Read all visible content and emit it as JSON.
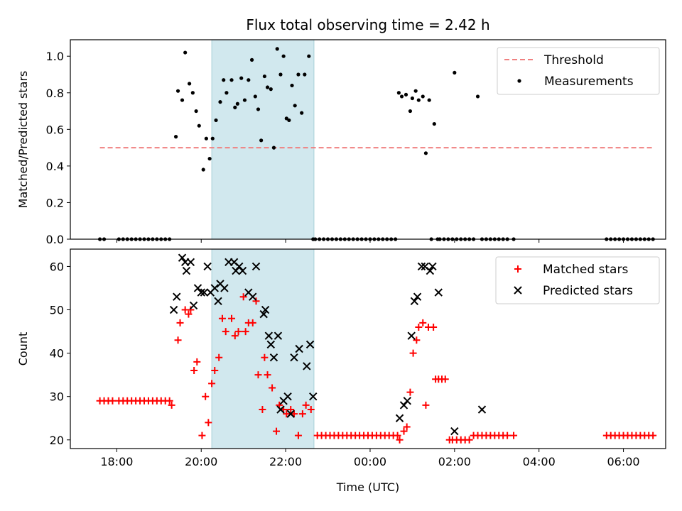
{
  "figure": {
    "title": "Flux total observing time = 2.42 h"
  },
  "chart_data": [
    {
      "type": "scatter",
      "ylabel": "Matched/Predicted stars",
      "xlabel": "",
      "x_unit": "hours UTC (values above 24 are after midnight)",
      "xlim": [
        16.9,
        31.0
      ],
      "ylim": [
        0,
        1.09
      ],
      "yticks": [
        0.0,
        0.2,
        0.4,
        0.6,
        0.8,
        1.0
      ],
      "ytick_labels": [
        "0.0",
        "0.2",
        "0.4",
        "0.6",
        "0.8",
        "1.0"
      ],
      "highlight_span": [
        20.25,
        22.67
      ],
      "highlight_color": "#d1e8ee",
      "legend": {
        "position": "upper right",
        "entries": [
          "Threshold",
          "Measurements"
        ]
      },
      "threshold": {
        "name": "Threshold",
        "y": 0.5,
        "x_range": [
          17.6,
          30.7
        ],
        "color": "#f08080"
      },
      "series": [
        {
          "name": "Measurements",
          "marker": "dot",
          "color": "#000000",
          "x": [
            17.6,
            17.7,
            18.05,
            18.15,
            18.25,
            18.35,
            18.45,
            18.55,
            18.65,
            18.75,
            18.85,
            18.95,
            19.05,
            19.15,
            19.25,
            19.4,
            19.45,
            19.55,
            19.62,
            19.72,
            19.8,
            19.88,
            19.95,
            20.05,
            20.12,
            20.2,
            20.27,
            20.35,
            20.45,
            20.53,
            20.6,
            20.72,
            20.8,
            20.86,
            20.95,
            21.03,
            21.12,
            21.2,
            21.28,
            21.35,
            21.42,
            21.5,
            21.57,
            21.65,
            21.72,
            21.8,
            21.88,
            21.95,
            22.02,
            22.08,
            22.15,
            22.22,
            22.3,
            22.38,
            22.45,
            22.55,
            22.65,
            22.7,
            22.8,
            22.9,
            23.0,
            23.1,
            23.2,
            23.3,
            23.4,
            23.5,
            23.6,
            23.7,
            23.8,
            23.9,
            24.0,
            24.1,
            24.2,
            24.3,
            24.4,
            24.5,
            24.6,
            24.68,
            24.75,
            24.85,
            24.95,
            25.0,
            25.08,
            25.15,
            25.25,
            25.32,
            25.4,
            25.45,
            25.52,
            25.6,
            25.65,
            25.75,
            25.85,
            25.95,
            26.0,
            26.05,
            26.15,
            26.25,
            26.35,
            26.45,
            26.55,
            26.65,
            26.75,
            26.85,
            26.95,
            27.05,
            27.15,
            27.25,
            27.4,
            29.6,
            29.7,
            29.8,
            29.9,
            30.0,
            30.1,
            30.2,
            30.3,
            30.4,
            30.5,
            30.6,
            30.7
          ],
          "y": [
            0,
            0,
            0,
            0,
            0,
            0,
            0,
            0,
            0,
            0,
            0,
            0,
            0,
            0,
            0,
            0.56,
            0.81,
            0.76,
            1.02,
            0.85,
            0.8,
            0.7,
            0.62,
            0.38,
            0.55,
            0.44,
            0.55,
            0.65,
            0.75,
            0.87,
            0.8,
            0.87,
            0.72,
            0.74,
            0.88,
            0.76,
            0.87,
            0.98,
            0.78,
            0.71,
            0.54,
            0.89,
            0.83,
            0.82,
            0.5,
            1.04,
            0.9,
            1.0,
            0.66,
            0.65,
            0.84,
            0.73,
            0.9,
            0.69,
            0.9,
            1.0,
            0,
            0,
            0,
            0,
            0,
            0,
            0,
            0,
            0,
            0,
            0,
            0,
            0,
            0,
            0,
            0,
            0,
            0,
            0,
            0,
            0,
            0.8,
            0.78,
            0.79,
            0.7,
            0.77,
            0.81,
            0.76,
            0.78,
            0.47,
            0.76,
            0,
            0.63,
            0,
            0,
            0,
            0,
            0,
            0.91,
            0,
            0,
            0,
            0,
            0,
            0.78,
            0,
            0,
            0,
            0,
            0,
            0,
            0,
            0,
            0,
            0,
            0,
            0,
            0,
            0,
            0,
            0,
            0,
            0,
            0,
            0
          ]
        }
      ]
    },
    {
      "type": "scatter",
      "ylabel": "Count",
      "xlabel": "Time (UTC)",
      "x_unit": "hours UTC (values above 24 are after midnight)",
      "xlim": [
        16.9,
        31.0
      ],
      "ylim": [
        18,
        64
      ],
      "xticks": [
        18,
        20,
        22,
        24,
        26,
        28,
        30
      ],
      "xtick_labels": [
        "18:00",
        "20:00",
        "22:00",
        "00:00",
        "02:00",
        "04:00",
        "06:00"
      ],
      "yticks": [
        20,
        30,
        40,
        50,
        60
      ],
      "ytick_labels": [
        "20",
        "30",
        "40",
        "50",
        "60"
      ],
      "highlight_span": [
        20.25,
        22.67
      ],
      "highlight_color": "#d1e8ee",
      "legend": {
        "position": "upper right",
        "entries": [
          "Matched stars",
          "Predicted stars"
        ]
      },
      "series": [
        {
          "name": "Matched stars",
          "marker": "plus",
          "color": "#ff0000",
          "x": [
            17.6,
            17.7,
            17.8,
            17.9,
            18.05,
            18.15,
            18.25,
            18.35,
            18.45,
            18.55,
            18.65,
            18.75,
            18.85,
            18.95,
            19.05,
            19.15,
            19.25,
            19.3,
            19.45,
            19.5,
            19.62,
            19.7,
            19.75,
            19.83,
            19.9,
            20.02,
            20.1,
            20.17,
            20.25,
            20.32,
            20.42,
            20.5,
            20.58,
            20.72,
            20.8,
            20.88,
            21.0,
            21.05,
            21.12,
            21.22,
            21.3,
            21.35,
            21.45,
            21.5,
            21.57,
            21.68,
            21.78,
            21.85,
            21.95,
            22.02,
            22.12,
            22.2,
            22.3,
            22.4,
            22.48,
            22.6,
            22.75,
            22.85,
            22.95,
            23.05,
            23.15,
            23.25,
            23.35,
            23.45,
            23.55,
            23.65,
            23.75,
            23.85,
            23.95,
            24.05,
            24.15,
            24.25,
            24.35,
            24.45,
            24.55,
            24.65,
            24.7,
            24.8,
            24.87,
            24.95,
            25.02,
            25.1,
            25.15,
            25.25,
            25.32,
            25.38,
            25.5,
            25.55,
            25.62,
            25.7,
            25.78,
            25.88,
            25.95,
            26.05,
            26.15,
            26.25,
            26.35,
            26.45,
            26.55,
            26.65,
            26.75,
            26.85,
            26.95,
            27.05,
            27.15,
            27.25,
            27.4,
            29.6,
            29.7,
            29.8,
            29.9,
            30.0,
            30.1,
            30.2,
            30.3,
            30.4,
            30.5,
            30.6,
            30.7
          ],
          "y": [
            29,
            29,
            29,
            29,
            29,
            29,
            29,
            29,
            29,
            29,
            29,
            29,
            29,
            29,
            29,
            29,
            29,
            28,
            43,
            47,
            50,
            49,
            50,
            36,
            38,
            21,
            30,
            24,
            33,
            36,
            39,
            48,
            45,
            48,
            44,
            45,
            53,
            45,
            47,
            47,
            52,
            35,
            27,
            39,
            35,
            32,
            22,
            28,
            27,
            26,
            27,
            26,
            21,
            26,
            28,
            27,
            21,
            21,
            21,
            21,
            21,
            21,
            21,
            21,
            21,
            21,
            21,
            21,
            21,
            21,
            21,
            21,
            21,
            21,
            21,
            21,
            20,
            22,
            23,
            31,
            40,
            43,
            46,
            47,
            28,
            46,
            46,
            34,
            34,
            34,
            34,
            20,
            20,
            20,
            20,
            20,
            20,
            21,
            21,
            21,
            21,
            21,
            21,
            21,
            21,
            21,
            21,
            21,
            21,
            21,
            21,
            21,
            21,
            21,
            21,
            21,
            21,
            21,
            21
          ]
        },
        {
          "name": "Predicted stars",
          "marker": "x",
          "color": "#000000",
          "x": [
            19.35,
            19.42,
            19.55,
            19.62,
            19.65,
            19.75,
            19.82,
            19.92,
            20.0,
            20.07,
            20.15,
            20.22,
            20.32,
            20.4,
            20.45,
            20.55,
            20.65,
            20.78,
            20.82,
            20.9,
            20.98,
            21.12,
            21.22,
            21.3,
            21.48,
            21.52,
            21.6,
            21.65,
            21.72,
            21.82,
            21.88,
            21.95,
            22.05,
            22.12,
            22.2,
            22.32,
            22.5,
            22.58,
            22.65,
            24.7,
            24.8,
            24.88,
            24.98,
            25.05,
            25.12,
            25.22,
            25.3,
            25.42,
            25.48,
            25.62,
            26.0,
            26.65
          ],
          "y": [
            50,
            53,
            62,
            61,
            59,
            61,
            51,
            55,
            54,
            54,
            60,
            54,
            55,
            52,
            56,
            55,
            61,
            61,
            59,
            60,
            59,
            54,
            53,
            60,
            49,
            50,
            44,
            42,
            39,
            44,
            27,
            29,
            30,
            26,
            39,
            41,
            37,
            42,
            30,
            25,
            28,
            29,
            44,
            52,
            53,
            60,
            60,
            59,
            60,
            54,
            22,
            27
          ]
        }
      ]
    }
  ]
}
